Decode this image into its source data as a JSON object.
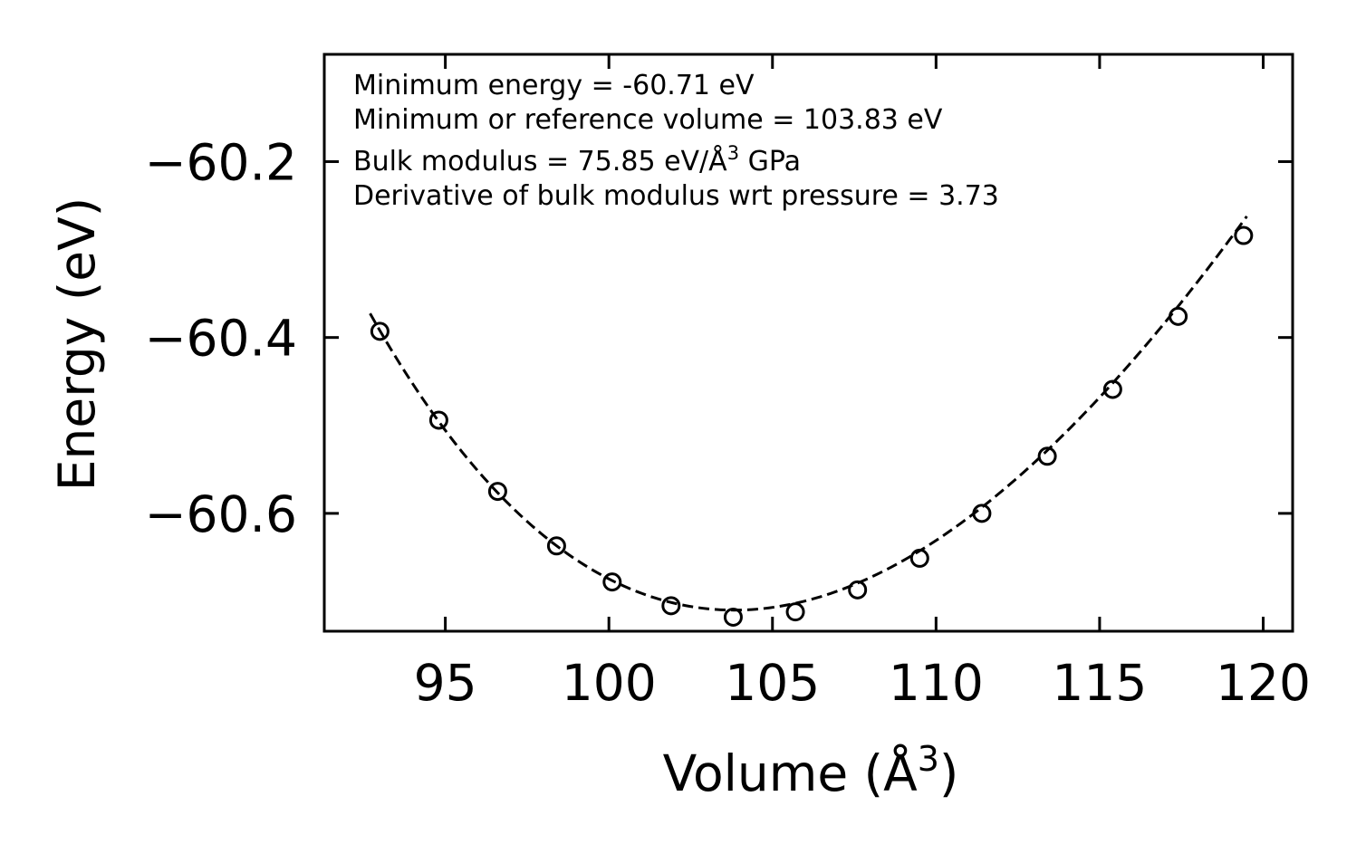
{
  "chart_data": {
    "type": "scatter",
    "xlabel": "Volume (Å",
    "xlabel_sup": "3",
    "xlabel_tail": ")",
    "ylabel": "Energy (eV)",
    "xlim": [
      91.3,
      120.9
    ],
    "ylim": [
      -60.734,
      -60.078
    ],
    "xticks": [
      95,
      100,
      105,
      110,
      115,
      120
    ],
    "xtick_labels": [
      "95",
      "100",
      "105",
      "110",
      "115",
      "120"
    ],
    "yticks": [
      -60.2,
      -60.4,
      -60.6
    ],
    "ytick_labels": [
      "−60.2",
      "−60.4",
      "−60.6"
    ],
    "series": [
      {
        "name": "data",
        "marker": "open-circle",
        "x": [
          93.0,
          94.8,
          96.6,
          98.4,
          100.1,
          101.9,
          103.8,
          105.7,
          107.6,
          109.5,
          111.4,
          113.4,
          115.4,
          117.4,
          119.4
        ],
        "y": [
          -60.393,
          -60.494,
          -60.575,
          -60.637,
          -60.678,
          -60.705,
          -60.718,
          -60.712,
          -60.687,
          -60.651,
          -60.6,
          -60.535,
          -60.459,
          -60.376,
          -60.284
        ]
      },
      {
        "name": "fit",
        "style": "dashed-line",
        "x_range": [
          92.7,
          119.5
        ],
        "params": {
          "E0": -60.71,
          "V0": 103.83,
          "B0": 75.85,
          "B0_prime": 3.73
        }
      }
    ],
    "annotations": [
      {
        "text": "Minimum energy = -60.71 eV"
      },
      {
        "text": "Minimum or reference volume = 103.83 eV"
      },
      {
        "text": "Bulk modulus = 75.85 eV/Å",
        "sup": "3",
        "tail": " GPa"
      },
      {
        "text": "Derivative of bulk modulus wrt pressure = 3.73"
      }
    ],
    "colors": {
      "line": "#000000",
      "marker": "#000000",
      "background": "#ffffff"
    }
  }
}
